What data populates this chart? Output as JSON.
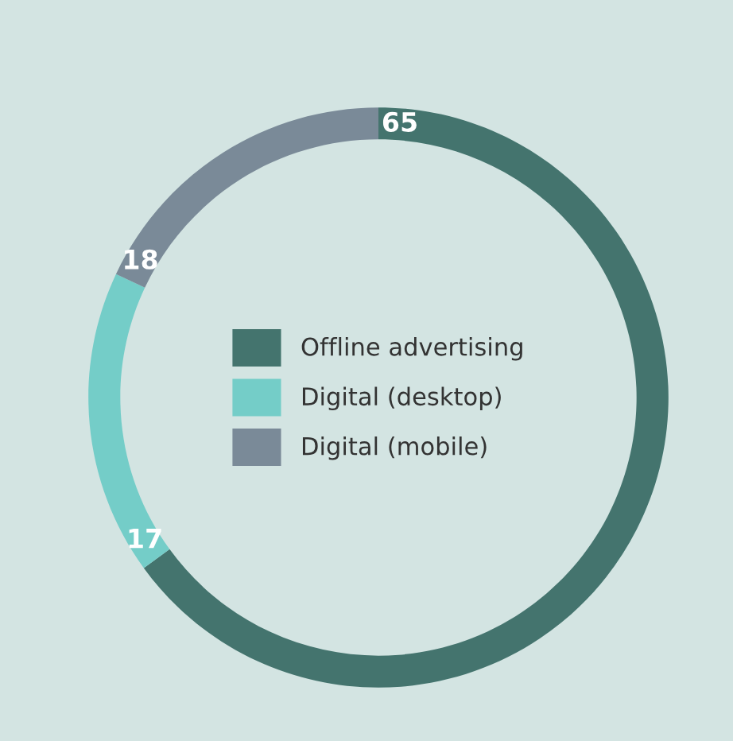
{
  "chart_data": {
    "type": "donut",
    "categories": [
      "Offline advertising",
      "Digital (desktop)",
      "Digital (mobile)"
    ],
    "values": [
      65,
      17,
      18
    ],
    "colors": [
      "#44746e",
      "#74cdc8",
      "#7a8a98"
    ],
    "data_labels": true,
    "legend": "center"
  }
}
